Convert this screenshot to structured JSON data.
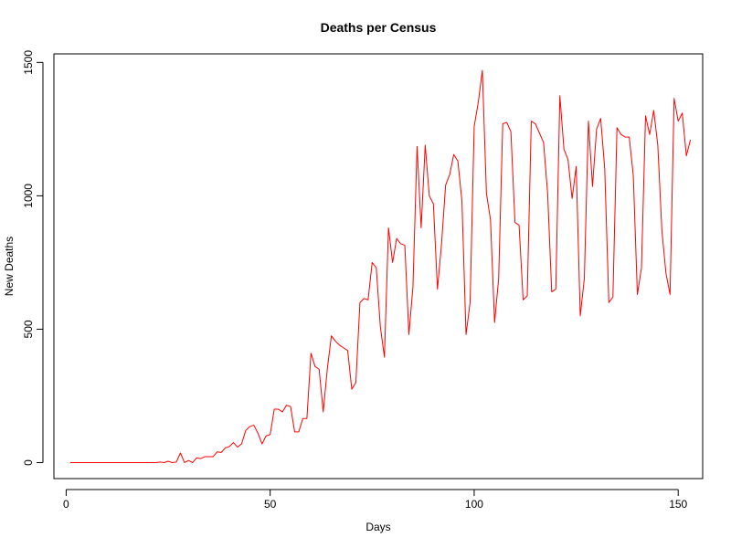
{
  "chart_data": {
    "type": "line",
    "title": "Deaths per Census",
    "xlabel": "Days",
    "ylabel": "New Deaths",
    "xlim": [
      -3,
      156
    ],
    "ylim": [
      -60,
      1532
    ],
    "xticks": [
      0,
      50,
      100,
      150
    ],
    "yticks": [
      0,
      500,
      1000,
      1500
    ],
    "grid": false,
    "series": [
      {
        "color": "#ff0000",
        "x": [
          1,
          2,
          3,
          4,
          5,
          6,
          7,
          8,
          9,
          10,
          11,
          12,
          13,
          14,
          15,
          16,
          17,
          18,
          19,
          20,
          21,
          22,
          23,
          24,
          25,
          26,
          27,
          28,
          29,
          30,
          31,
          32,
          33,
          34,
          35,
          36,
          37,
          38,
          39,
          40,
          41,
          42,
          43,
          44,
          45,
          46,
          47,
          48,
          49,
          50,
          51,
          52,
          53,
          54,
          55,
          56,
          57,
          58,
          59,
          60,
          61,
          62,
          63,
          64,
          65,
          66,
          67,
          68,
          69,
          70,
          71,
          72,
          73,
          74,
          75,
          76,
          77,
          78,
          79,
          80,
          81,
          82,
          83,
          84,
          85,
          86,
          87,
          88,
          89,
          90,
          91,
          92,
          93,
          94,
          95,
          96,
          97,
          98,
          99,
          100,
          101,
          102,
          103,
          104,
          105,
          106,
          107,
          108,
          109,
          110,
          111,
          112,
          113,
          114,
          115,
          116,
          117,
          118,
          119,
          120,
          121,
          122,
          123,
          124,
          125,
          126,
          127,
          128,
          129,
          130,
          131,
          132,
          133,
          134,
          135,
          136,
          137,
          138,
          139,
          140,
          141,
          142,
          143,
          144,
          145,
          146,
          147,
          148,
          149,
          150,
          151,
          152,
          153
        ],
        "y": [
          0,
          0,
          0,
          0,
          0,
          0,
          0,
          0,
          0,
          0,
          0,
          0,
          0,
          0,
          0,
          0,
          0,
          0,
          0,
          0,
          0,
          0,
          2,
          0,
          5,
          0,
          2,
          36,
          0,
          8,
          0,
          18,
          15,
          22,
          22,
          22,
          40,
          38,
          55,
          60,
          75,
          58,
          70,
          120,
          135,
          140,
          110,
          70,
          100,
          105,
          200,
          200,
          190,
          215,
          210,
          115,
          115,
          165,
          165,
          410,
          360,
          350,
          190,
          350,
          475,
          455,
          440,
          430,
          420,
          275,
          300,
          600,
          615,
          610,
          750,
          730,
          510,
          395,
          880,
          750,
          840,
          820,
          815,
          480,
          660,
          1185,
          880,
          1190,
          1000,
          970,
          650,
          820,
          1040,
          1080,
          1155,
          1130,
          980,
          480,
          600,
          1260,
          1350,
          1470,
          1010,
          910,
          525,
          690,
          1270,
          1275,
          1240,
          900,
          890,
          610,
          625,
          1280,
          1270,
          1235,
          1200,
          1010,
          640,
          650,
          1375,
          1175,
          1135,
          990,
          1110,
          550,
          690,
          1280,
          1035,
          1250,
          1290,
          1100,
          600,
          620,
          1255,
          1230,
          1220,
          1220,
          1075,
          630,
          730,
          1300,
          1230,
          1320,
          1190,
          870,
          710,
          630,
          1365,
          1280,
          1310,
          1150,
          1210
        ]
      }
    ]
  }
}
